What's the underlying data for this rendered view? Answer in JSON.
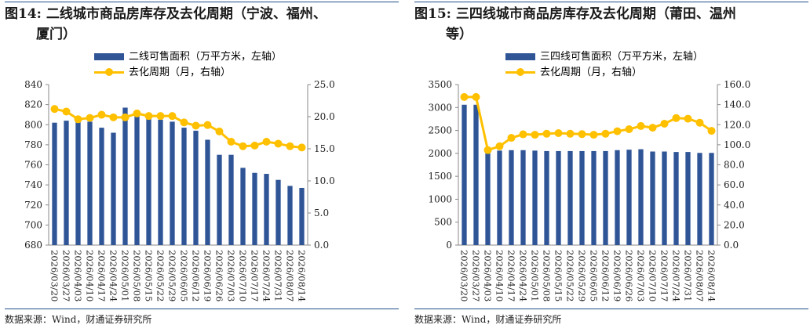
{
  "source_label": "数据来源：Wind，财通证券研究所",
  "colors": {
    "bar": "#2f5597",
    "line": "#ffc000",
    "rule": "#1f4e8c",
    "axis": "#888888"
  },
  "chart_data": [
    {
      "type": "bar+line",
      "title": "图14: 二线城市商品房库存及去化周期（宁波、福州、厦门）",
      "title_lines": [
        "图14: 二线城市商品房库存及去化周期（宁波、福州、",
        "厦门）"
      ],
      "categories": [
        "2026/03/20",
        "2026/03/27",
        "2026/04/03",
        "2026/04/10",
        "2026/04/17",
        "2026/04/24",
        "2026/05/01",
        "2026/05/08",
        "2026/05/15",
        "2026/05/22",
        "2026/05/29",
        "2026/06/05",
        "2026/06/12",
        "2026/06/19",
        "2026/06/26",
        "2026/07/03",
        "2026/07/10",
        "2026/07/17",
        "2026/07/24",
        "2026/07/31",
        "2026/08/07",
        "2026/08/14"
      ],
      "tick_labels": [
        "2026/03/20",
        "2026/03/27",
        "2026/04/03",
        "2026/04/10",
        "2026/04/17",
        "2026/04/24",
        "2026/05/01",
        "2026/05/08",
        "2026/05/15",
        "2026/05/22",
        "2026/05/29",
        "2026/06/05",
        "2026/06/12",
        "2026/06/19",
        "2026/06/26",
        "2026/07/03",
        "2026/07/10",
        "2026/07/17",
        "2026/07/24",
        "2026/07/31",
        "2026/08/07",
        "2026/08/14"
      ],
      "series": [
        {
          "name": "二线可售面积（万平方米，左轴）",
          "axis": "left",
          "kind": "bar",
          "values": [
            802,
            804,
            804,
            803,
            797,
            792,
            817,
            810,
            806,
            805,
            803,
            797,
            794,
            785,
            770,
            770,
            757,
            752,
            751,
            745,
            739,
            737
          ]
        },
        {
          "name": "去化周期（月，右轴）",
          "axis": "right",
          "kind": "line",
          "values": [
            21.2,
            20.8,
            19.6,
            19.8,
            20.3,
            19.9,
            19.9,
            20.5,
            20.1,
            20.1,
            20.1,
            19.1,
            18.6,
            18.7,
            17.7,
            16.1,
            15.4,
            15.5,
            16.1,
            15.8,
            15.4,
            15.2
          ]
        }
      ],
      "ylim_left": [
        680,
        840
      ],
      "yticks_left": [
        "680",
        "700",
        "720",
        "740",
        "760",
        "780",
        "800",
        "820",
        "840"
      ],
      "ylim_right": [
        0,
        25
      ],
      "yticks_right": [
        "0.0",
        "5.0",
        "10.0",
        "15.0",
        "20.0",
        "25.0"
      ],
      "legend_position": "top-center"
    },
    {
      "type": "bar+line",
      "title": "图15: 三四线城市商品房库存及去化周期（莆田、温州等）",
      "title_lines": [
        "图15: 三四线城市商品房库存及去化周期（莆田、温州",
        "等）"
      ],
      "categories": [
        "2026/03/20",
        "2026/03/27",
        "2026/04/03",
        "2026/04/10",
        "2026/04/17",
        "2026/04/24",
        "2026/05/01",
        "2026/05/08",
        "2026/05/15",
        "2026/05/22",
        "2026/05/29",
        "2026/06/05",
        "2026/06/12",
        "2026/06/19",
        "2026/06/26",
        "2026/07/03",
        "2026/07/10",
        "2026/07/17",
        "2026/07/24",
        "2026/07/31",
        "2026/08/07",
        "2026/08/14"
      ],
      "tick_labels": [
        "2026/03/20",
        "2026/03/27",
        "2026/04/03",
        "2026/04/10",
        "2026/04/17",
        "2026/04/24",
        "2026/05/01",
        "2026/05/08",
        "2026/05/15",
        "2026/05/22",
        "2026/05/29",
        "2026/06/05",
        "2026/06/12",
        "2026/06/19",
        "2026/06/26",
        "2026/07/03",
        "2026/07/10",
        "2026/07/17",
        "2026/07/24",
        "2026/07/31",
        "2026/08/07",
        "2026/08/14"
      ],
      "series": [
        {
          "name": "三四线可售面积（万平方米，左轴）",
          "axis": "left",
          "kind": "bar",
          "values": [
            3060,
            3060,
            2020,
            2060,
            2070,
            2070,
            2060,
            2050,
            2050,
            2050,
            2050,
            2050,
            2050,
            2070,
            2080,
            2090,
            2040,
            2040,
            2030,
            2030,
            2010,
            2010
          ]
        },
        {
          "name": "去化周期（月，右轴）",
          "axis": "right",
          "kind": "line",
          "values": [
            147.6,
            147.6,
            94.7,
            98.5,
            106.9,
            110.4,
            110.0,
            111.0,
            111.6,
            111.0,
            110.6,
            110.0,
            111.0,
            113.5,
            115.5,
            118.7,
            117.0,
            121.0,
            126.6,
            126.0,
            122.0,
            113.9
          ]
        }
      ],
      "ylim_left": [
        0,
        3500
      ],
      "yticks_left": [
        "0",
        "500",
        "1000",
        "1500",
        "2000",
        "2500",
        "3000",
        "3500"
      ],
      "ylim_right": [
        0,
        160
      ],
      "yticks_right": [
        "0.0",
        "20.0",
        "40.0",
        "60.0",
        "80.0",
        "100.0",
        "120.0",
        "140.0",
        "160.0"
      ],
      "legend_position": "top-center"
    }
  ]
}
